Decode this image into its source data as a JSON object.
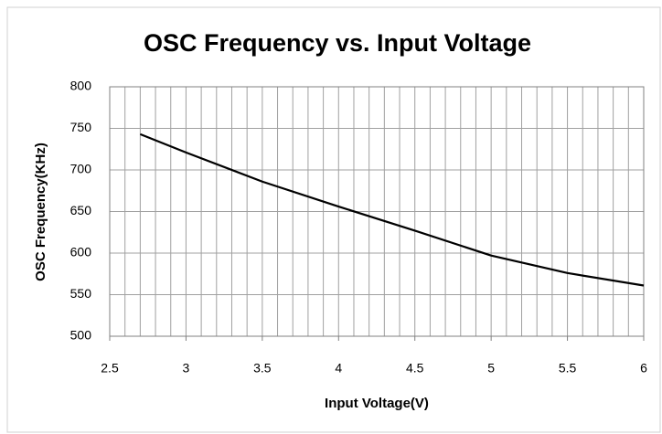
{
  "chart_data": {
    "type": "line",
    "title": "OSC Frequency vs. Input Voltage",
    "x_label": "Input Voltage(V)",
    "y_label": "OSC Frequency(KHz)",
    "x": [
      2.7,
      3.0,
      3.5,
      4.0,
      4.5,
      5.0,
      5.5,
      6.0
    ],
    "series": [
      {
        "name": "OSC Frequency",
        "color": "#000000",
        "values": [
          743,
          721,
          686,
          656,
          627,
          597,
          576,
          561
        ]
      }
    ],
    "xlim": [
      2.5,
      6
    ],
    "xticks": [
      2.5,
      3,
      3.5,
      4,
      4.5,
      5,
      5.5,
      6
    ],
    "xminorticks": [
      2.5,
      2.6,
      2.7,
      2.8,
      2.9,
      3.0,
      3.1,
      3.2,
      3.3,
      3.4,
      3.5,
      3.6,
      3.7,
      3.8,
      3.9,
      4.0,
      4.1,
      4.2,
      4.3,
      4.4,
      4.5,
      4.6,
      4.7,
      4.8,
      4.9,
      5.0,
      5.1,
      5.2,
      5.3,
      5.4,
      5.5,
      5.6,
      5.7,
      5.8,
      5.9,
      6.0
    ],
    "ylim": [
      500,
      800
    ],
    "yticks": [
      500,
      550,
      600,
      650,
      700,
      750,
      800
    ],
    "grid": true
  }
}
